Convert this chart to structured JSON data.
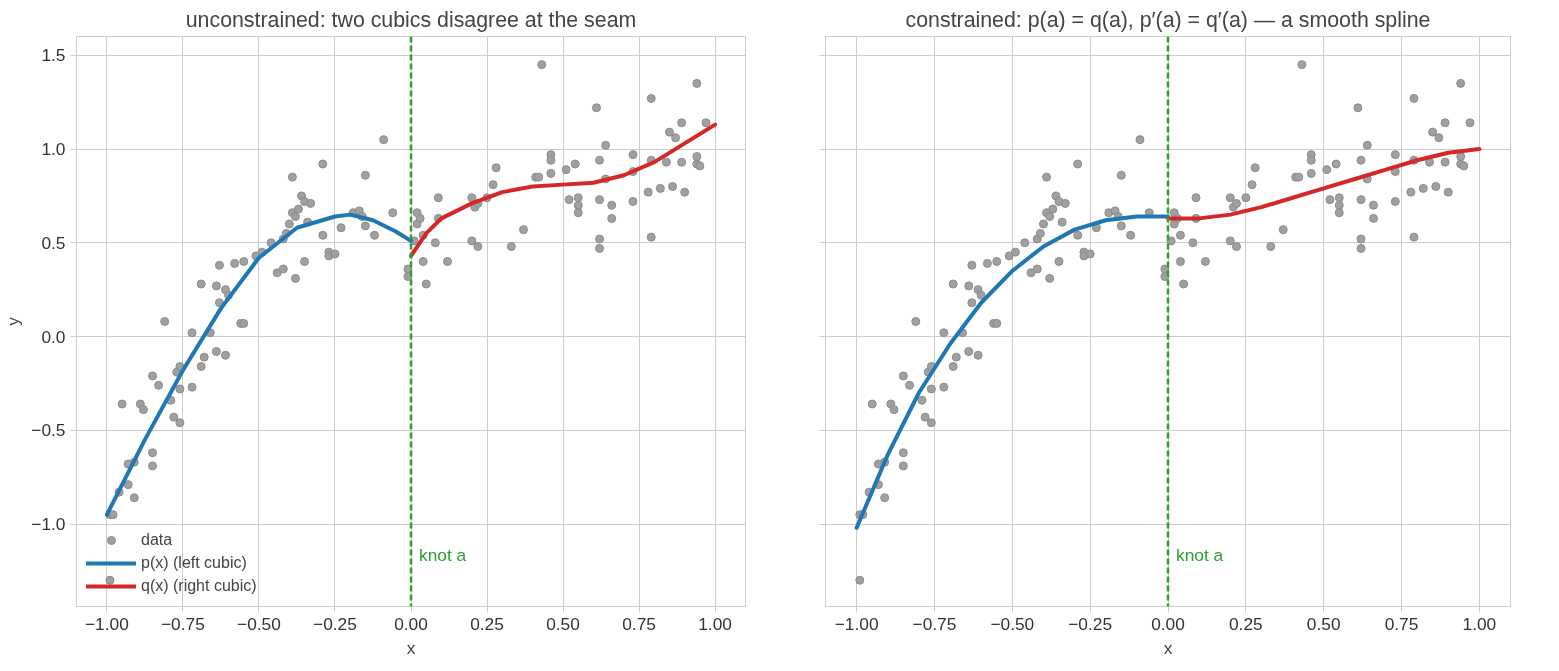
{
  "chart_data": [
    {
      "type": "scatter",
      "title": "unconstrained: two cubics disagree at the seam",
      "xlabel": "x",
      "ylabel": "y",
      "xlim": [
        -1.1,
        1.1
      ],
      "ylim": [
        -1.44,
        1.6
      ],
      "xticks": [
        {
          "value": -1,
          "label": "−1.00"
        },
        {
          "value": -0.75,
          "label": "−0.75"
        },
        {
          "value": -0.5,
          "label": "−0.50"
        },
        {
          "value": -0.25,
          "label": "−0.25"
        },
        {
          "value": 0,
          "label": "0.00"
        },
        {
          "value": 0.25,
          "label": "0.25"
        },
        {
          "value": 0.5,
          "label": "0.50"
        },
        {
          "value": 0.75,
          "label": "0.75"
        },
        {
          "value": 1,
          "label": "1.00"
        }
      ],
      "yticks": [
        {
          "value": -1,
          "label": "−1.0"
        },
        {
          "value": -0.5,
          "label": "−0.5"
        },
        {
          "value": 0,
          "label": "0.0"
        },
        {
          "value": 0.5,
          "label": "0.5"
        },
        {
          "value": 1,
          "label": "1.0"
        },
        {
          "value": 1.5,
          "label": "1.5"
        }
      ],
      "grid": true,
      "legend": "bottom left",
      "ref_lines": [
        {
          "axis": "x",
          "value": 0,
          "label": "knot a",
          "color": "#2ca02c",
          "line_style": "dashed"
        }
      ],
      "series": [
        {
          "name": "data",
          "marker": "circle",
          "color": "#a0a0a0",
          "x": [
            -0.99,
            -0.98,
            -0.99,
            -0.96,
            -0.93,
            -0.93,
            -0.91,
            -0.91,
            -0.95,
            -0.89,
            -0.88,
            -0.85,
            -0.85,
            -0.85,
            -0.83,
            -0.81,
            -0.79,
            -0.78,
            -0.77,
            -0.76,
            -0.76,
            -0.76,
            -0.72,
            -0.72,
            -0.69,
            -0.69,
            -0.68,
            -0.66,
            -0.64,
            -0.64,
            -0.63,
            -0.63,
            -0.61,
            -0.61,
            -0.6,
            -0.58,
            -0.56,
            -0.55,
            -0.55,
            -0.51,
            -0.49,
            -0.46,
            -0.44,
            -0.42,
            -0.42,
            -0.41,
            -0.4,
            -0.39,
            -0.39,
            -0.38,
            -0.38,
            -0.37,
            -0.36,
            -0.35,
            -0.35,
            -0.34,
            -0.33,
            -0.29,
            -0.29,
            -0.27,
            -0.27,
            -0.25,
            -0.23,
            -0.19,
            -0.17,
            -0.16,
            -0.15,
            -0.15,
            -0.12,
            -0.09,
            -0.06,
            -0.01,
            -0.01,
            0.01,
            0.02,
            0.02,
            0.03,
            0.04,
            0.04,
            0.05,
            0.08,
            0.09,
            0.09,
            0.12,
            0.2,
            0.2,
            0.21,
            0.22,
            0.22,
            0.25,
            0.27,
            0.28,
            0.33,
            0.37,
            0.41,
            0.42,
            0.43,
            0.46,
            0.46,
            0.46,
            0.51,
            0.52,
            0.54,
            0.55,
            0.55,
            0.55,
            0.61,
            0.62,
            0.62,
            0.62,
            0.62,
            0.64,
            0.64,
            0.66,
            0.66,
            0.73,
            0.73,
            0.73,
            0.78,
            0.79,
            0.79,
            0.79,
            0.82,
            0.84,
            0.85,
            0.86,
            0.87,
            0.89,
            0.89,
            0.9,
            0.94,
            0.94,
            0.94,
            0.95,
            0.97
          ],
          "values": [
            -0.95,
            -0.95,
            -1.3,
            -0.83,
            -0.79,
            -0.68,
            -0.67,
            -0.86,
            -0.36,
            -0.36,
            -0.39,
            -0.21,
            -0.62,
            -0.69,
            -0.26,
            0.08,
            -0.34,
            -0.43,
            -0.19,
            -0.46,
            -0.28,
            -0.16,
            -0.27,
            0.02,
            0.28,
            -0.16,
            -0.11,
            0.02,
            0.27,
            -0.08,
            0.18,
            0.38,
            -0.1,
            0.25,
            0.22,
            0.39,
            0.07,
            0.07,
            0.4,
            0.43,
            0.45,
            0.5,
            0.34,
            0.36,
            0.52,
            0.55,
            0.6,
            0.66,
            0.85,
            0.31,
            0.64,
            0.68,
            0.75,
            0.72,
            0.4,
            0.61,
            0.71,
            0.54,
            0.92,
            0.45,
            0.43,
            0.44,
            0.58,
            0.66,
            0.67,
            0.64,
            0.59,
            0.86,
            0.54,
            1.05,
            0.66,
            0.36,
            0.32,
            0.51,
            0.66,
            0.6,
            0.63,
            0.54,
            0.4,
            0.28,
            0.5,
            0.74,
            0.63,
            0.4,
            0.51,
            0.74,
            0.69,
            0.48,
            0.71,
            0.74,
            0.81,
            0.9,
            0.48,
            0.57,
            0.85,
            0.85,
            1.45,
            0.97,
            0.94,
            0.87,
            0.89,
            0.73,
            0.92,
            0.74,
            0.7,
            0.66,
            1.22,
            0.52,
            0.47,
            0.94,
            0.73,
            1.02,
            0.84,
            0.63,
            0.7,
            0.97,
            0.88,
            0.72,
            0.77,
            1.27,
            0.53,
            0.94,
            0.79,
            0.93,
            1.09,
            0.8,
            1.06,
            0.93,
            1.14,
            0.77,
            0.92,
            1.35,
            0.96,
            0.91,
            1.14
          ]
        },
        {
          "name": "p(x) (left cubic)",
          "type": "line",
          "marker": "none",
          "color": "#1f77b4",
          "x": [
            -1,
            -0.875,
            -0.75,
            -0.625,
            -0.5,
            -0.375,
            -0.25,
            -0.2,
            -0.125,
            -0.05,
            0
          ],
          "values": [
            -0.95,
            -0.55,
            -0.18,
            0.15,
            0.42,
            0.58,
            0.64,
            0.65,
            0.62,
            0.56,
            0.51
          ]
        },
        {
          "name": "q(x) (right cubic)",
          "type": "line",
          "marker": "none",
          "color": "#d62728",
          "x": [
            0,
            0.05,
            0.1,
            0.2,
            0.3,
            0.4,
            0.5,
            0.6,
            0.7,
            0.8,
            0.9,
            1
          ],
          "values": [
            0.43,
            0.55,
            0.63,
            0.71,
            0.77,
            0.8,
            0.81,
            0.82,
            0.86,
            0.93,
            1.03,
            1.13
          ]
        }
      ]
    },
    {
      "type": "scatter",
      "title": "constrained: p(a) = q(a), p′(a) = q′(a) — a smooth spline",
      "xlabel": "x",
      "xlim": [
        -1.1,
        1.1
      ],
      "ylim": [
        -1.44,
        1.6
      ],
      "tick_labels": "x",
      "xticks": [
        {
          "value": -1,
          "label": "−1.00"
        },
        {
          "value": -0.75,
          "label": "−0.75"
        },
        {
          "value": -0.5,
          "label": "−0.50"
        },
        {
          "value": -0.25,
          "label": "−0.25"
        },
        {
          "value": 0,
          "label": "0.00"
        },
        {
          "value": 0.25,
          "label": "0.25"
        },
        {
          "value": 0.5,
          "label": "0.50"
        },
        {
          "value": 0.75,
          "label": "0.75"
        },
        {
          "value": 1,
          "label": "1.00"
        }
      ],
      "yticks": [
        -1,
        -0.5,
        0,
        0.5,
        1,
        1.5
      ],
      "grid": true,
      "ref_lines": [
        {
          "axis": "x",
          "value": 0,
          "label": "knot a",
          "color": "#2ca02c",
          "line_style": "dashed"
        }
      ],
      "series": [
        {
          "marker": "circle",
          "color": "#a0a0a0",
          "x": [
            -0.99,
            -0.98,
            -0.99,
            -0.96,
            -0.93,
            -0.93,
            -0.91,
            -0.91,
            -0.95,
            -0.89,
            -0.88,
            -0.85,
            -0.85,
            -0.85,
            -0.83,
            -0.81,
            -0.79,
            -0.78,
            -0.77,
            -0.76,
            -0.76,
            -0.76,
            -0.72,
            -0.72,
            -0.69,
            -0.69,
            -0.68,
            -0.66,
            -0.64,
            -0.64,
            -0.63,
            -0.63,
            -0.61,
            -0.61,
            -0.6,
            -0.58,
            -0.56,
            -0.55,
            -0.55,
            -0.51,
            -0.49,
            -0.46,
            -0.44,
            -0.42,
            -0.42,
            -0.41,
            -0.4,
            -0.39,
            -0.39,
            -0.38,
            -0.38,
            -0.37,
            -0.36,
            -0.35,
            -0.35,
            -0.34,
            -0.33,
            -0.29,
            -0.29,
            -0.27,
            -0.27,
            -0.25,
            -0.23,
            -0.19,
            -0.17,
            -0.16,
            -0.15,
            -0.15,
            -0.12,
            -0.09,
            -0.06,
            -0.01,
            -0.01,
            0.01,
            0.02,
            0.02,
            0.03,
            0.04,
            0.04,
            0.05,
            0.08,
            0.09,
            0.09,
            0.12,
            0.2,
            0.2,
            0.21,
            0.22,
            0.22,
            0.25,
            0.27,
            0.28,
            0.33,
            0.37,
            0.41,
            0.42,
            0.43,
            0.46,
            0.46,
            0.46,
            0.51,
            0.52,
            0.54,
            0.55,
            0.55,
            0.55,
            0.61,
            0.62,
            0.62,
            0.62,
            0.62,
            0.64,
            0.64,
            0.66,
            0.66,
            0.73,
            0.73,
            0.73,
            0.78,
            0.79,
            0.79,
            0.79,
            0.82,
            0.84,
            0.85,
            0.86,
            0.87,
            0.89,
            0.89,
            0.9,
            0.94,
            0.94,
            0.94,
            0.95,
            0.97
          ],
          "values": [
            -0.95,
            -0.95,
            -1.3,
            -0.83,
            -0.79,
            -0.68,
            -0.67,
            -0.86,
            -0.36,
            -0.36,
            -0.39,
            -0.21,
            -0.62,
            -0.69,
            -0.26,
            0.08,
            -0.34,
            -0.43,
            -0.19,
            -0.46,
            -0.28,
            -0.16,
            -0.27,
            0.02,
            0.28,
            -0.16,
            -0.11,
            0.02,
            0.27,
            -0.08,
            0.18,
            0.38,
            -0.1,
            0.25,
            0.22,
            0.39,
            0.07,
            0.07,
            0.4,
            0.43,
            0.45,
            0.5,
            0.34,
            0.36,
            0.52,
            0.55,
            0.6,
            0.66,
            0.85,
            0.31,
            0.64,
            0.68,
            0.75,
            0.72,
            0.4,
            0.61,
            0.71,
            0.54,
            0.92,
            0.45,
            0.43,
            0.44,
            0.58,
            0.66,
            0.67,
            0.64,
            0.59,
            0.86,
            0.54,
            1.05,
            0.66,
            0.36,
            0.32,
            0.51,
            0.66,
            0.6,
            0.63,
            0.54,
            0.4,
            0.28,
            0.5,
            0.74,
            0.63,
            0.4,
            0.51,
            0.74,
            0.69,
            0.48,
            0.71,
            0.74,
            0.81,
            0.9,
            0.48,
            0.57,
            0.85,
            0.85,
            1.45,
            0.97,
            0.94,
            0.87,
            0.89,
            0.73,
            0.92,
            0.74,
            0.7,
            0.66,
            1.22,
            0.52,
            0.47,
            0.94,
            0.73,
            1.02,
            0.84,
            0.63,
            0.7,
            0.97,
            0.88,
            0.72,
            0.77,
            1.27,
            0.53,
            0.94,
            0.79,
            0.93,
            1.09,
            0.8,
            1.06,
            0.93,
            1.14,
            0.77,
            0.92,
            1.35,
            0.96,
            0.91,
            1.14
          ]
        },
        {
          "type": "line",
          "marker": "none",
          "color": "#1f77b4",
          "x": [
            -1,
            -0.9,
            -0.8,
            -0.7,
            -0.6,
            -0.5,
            -0.4,
            -0.3,
            -0.2,
            -0.1,
            0
          ],
          "values": [
            -1.02,
            -0.63,
            -0.3,
            -0.04,
            0.18,
            0.35,
            0.48,
            0.57,
            0.62,
            0.64,
            0.64
          ]
        },
        {
          "type": "line",
          "marker": "none",
          "color": "#d62728",
          "x": [
            0,
            0.1,
            0.2,
            0.3,
            0.4,
            0.5,
            0.6,
            0.7,
            0.8,
            0.9,
            1
          ],
          "values": [
            0.63,
            0.63,
            0.65,
            0.69,
            0.74,
            0.79,
            0.84,
            0.89,
            0.94,
            0.98,
            1.0
          ]
        }
      ]
    }
  ]
}
